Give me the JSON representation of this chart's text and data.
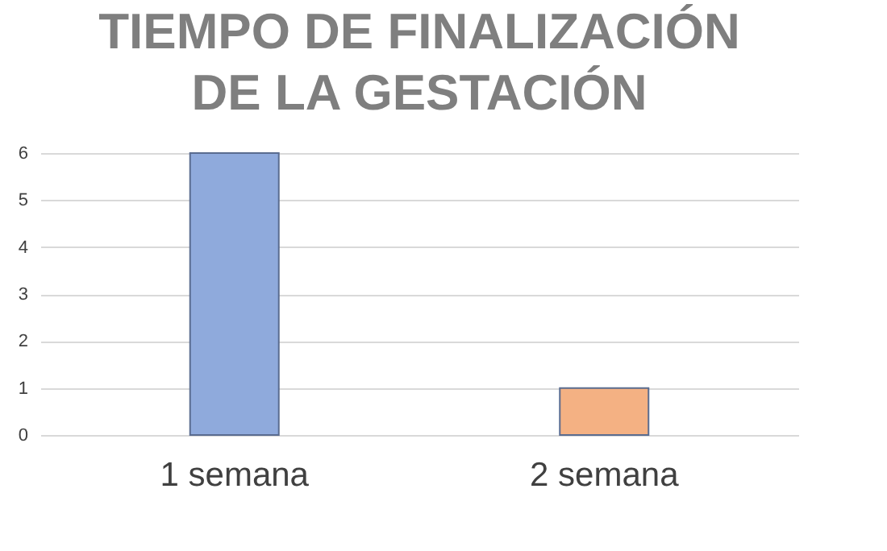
{
  "chart_data": {
    "type": "bar",
    "title": "TIEMPO DE FINALIZACIÓN\nDE LA GESTACIÓN",
    "categories": [
      "1 semana",
      "2 semana"
    ],
    "values": [
      6,
      1
    ],
    "colors": [
      "#8faadc",
      "#f4b183"
    ],
    "ylim": [
      0,
      6
    ],
    "yticks": [
      0,
      1,
      2,
      3,
      4,
      5,
      6
    ],
    "grid": true
  }
}
